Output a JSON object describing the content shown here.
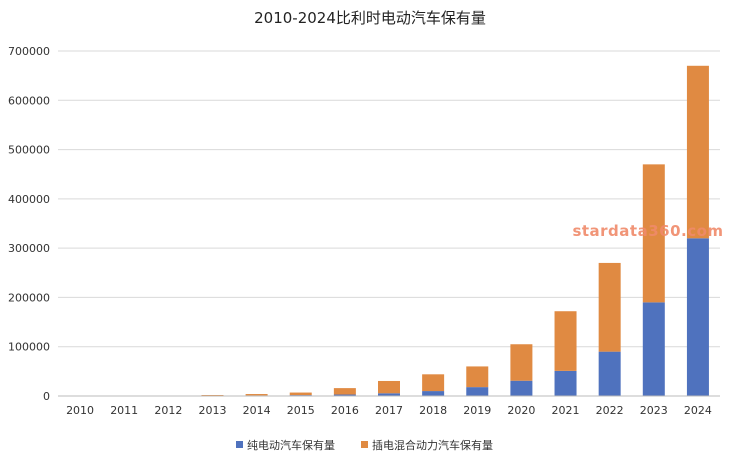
{
  "chart_data": {
    "type": "bar",
    "stacked": true,
    "title": "2010-2024比利时电动汽车保有量",
    "categories": [
      "2010",
      "2011",
      "2012",
      "2013",
      "2014",
      "2015",
      "2016",
      "2017",
      "2018",
      "2019",
      "2020",
      "2021",
      "2022",
      "2023",
      "2024"
    ],
    "series": [
      {
        "name": "纯电动汽车保有量",
        "color": "#4f72be",
        "values": [
          0,
          300,
          500,
          800,
          1200,
          1800,
          3000,
          5500,
          10000,
          18000,
          31000,
          51000,
          90000,
          190000,
          320000
        ]
      },
      {
        "name": "插电混合动力汽车保有量",
        "color": "#e08a42",
        "values": [
          0,
          200,
          500,
          1200,
          2800,
          5200,
          13000,
          25000,
          34000,
          42000,
          74000,
          121000,
          180000,
          280000,
          350000
        ]
      }
    ],
    "ylim": [
      0,
      700000
    ],
    "yticks": [
      "0",
      "100000",
      "200000",
      "300000",
      "400000",
      "500000",
      "600000",
      "700000"
    ],
    "ytick_values": [
      0,
      100000,
      200000,
      300000,
      400000,
      500000,
      600000,
      700000
    ],
    "grid": true,
    "legend_position": "bottom",
    "watermark": "stardata360.com"
  }
}
